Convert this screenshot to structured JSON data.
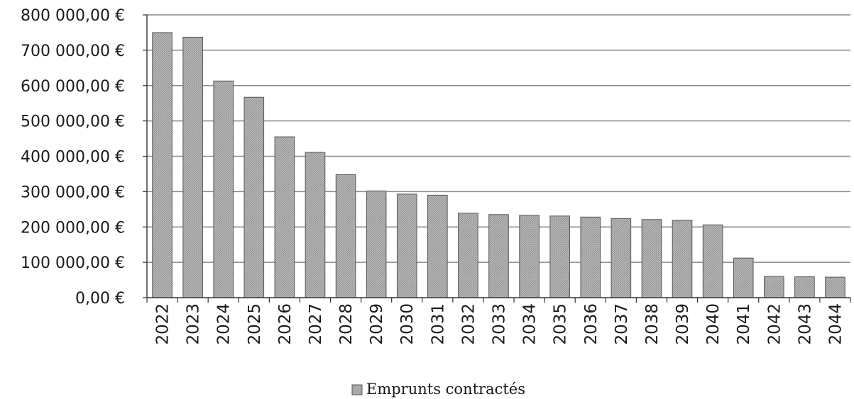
{
  "chart_data": {
    "type": "bar",
    "categories": [
      "2022",
      "2023",
      "2024",
      "2025",
      "2026",
      "2027",
      "2028",
      "2029",
      "2030",
      "2031",
      "2032",
      "2033",
      "2034",
      "2035",
      "2036",
      "2037",
      "2038",
      "2039",
      "2040",
      "2041",
      "2042",
      "2043",
      "2044"
    ],
    "series": [
      {
        "name": "Emprunts contractés",
        "values": [
          750000,
          737000,
          613000,
          567000,
          455000,
          411000,
          348000,
          302000,
          293000,
          290000,
          239000,
          235000,
          233000,
          231000,
          228000,
          224000,
          221000,
          219000,
          206000,
          112000,
          60000,
          59000,
          58000
        ]
      }
    ],
    "ylim": [
      0,
      800000
    ],
    "yticks": [
      0,
      100000,
      200000,
      300000,
      400000,
      500000,
      600000,
      700000,
      800000
    ],
    "ytick_labels": [
      "0,00 €",
      "100 000,00 €",
      "200 000,00 €",
      "300 000,00 €",
      "400 000,00 €",
      "500 000,00 €",
      "600 000,00 €",
      "700 000,00 €",
      "800 000,00 €"
    ],
    "title": "",
    "xlabel": "",
    "ylabel": "",
    "grid": true,
    "legend_position": "bottom-center",
    "bar_color": "#a9a9a9",
    "bar_edge_color": "#555555",
    "grid_color": "#8a8a8a"
  }
}
